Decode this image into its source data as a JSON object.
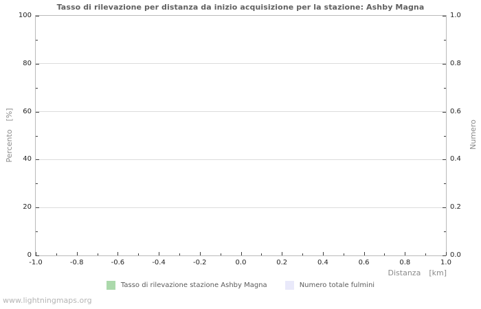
{
  "watermark": "www.lightningmaps.org",
  "colors": {
    "background": "#ffffff",
    "title": "#606060",
    "tick_label": "#222222",
    "axis_label": "#8a8a8a",
    "grid": "#dcdcdc",
    "border": "#b9b9b9",
    "tick": "#3a3a3a",
    "legend_text": "#5a5a5a",
    "watermark": "#b4b4b4"
  },
  "chart_data": {
    "type": "bar",
    "title": "Tasso di rilevazione per distanza da inizio acquisizione per la stazione: Ashby Magna",
    "grid": true,
    "legend_position": "bottom",
    "x_axis": {
      "label": "Distanza",
      "unit": "[km]",
      "min": -1.0,
      "max": 1.0,
      "major_ticks": [
        -1.0,
        -0.8,
        -0.6,
        -0.4,
        -0.2,
        0.0,
        0.2,
        0.4,
        0.6,
        0.8,
        1.0
      ],
      "major_labels": [
        "-1.0",
        "-0.8",
        "-0.6",
        "-0.4",
        "-0.2",
        "0.0",
        "0.2",
        "0.4",
        "0.6",
        "0.8",
        "1.0"
      ],
      "minor_ticks": [
        -0.9,
        -0.7,
        -0.5,
        -0.3,
        -0.1,
        0.1,
        0.3,
        0.5,
        0.7,
        0.9
      ]
    },
    "y_axis_left": {
      "label": "Percento",
      "unit": "[%]",
      "min": 0,
      "max": 100,
      "major_ticks": [
        0,
        20,
        40,
        60,
        80,
        100
      ],
      "major_labels": [
        "0",
        "20",
        "40",
        "60",
        "80",
        "100"
      ],
      "minor_ticks": [
        10,
        30,
        50,
        70,
        90
      ]
    },
    "y_axis_right": {
      "label": "Numero",
      "min": 0.0,
      "max": 1.0,
      "major_ticks": [
        0.0,
        0.2,
        0.4,
        0.6,
        0.8,
        1.0
      ],
      "major_labels": [
        "0.0",
        "0.2",
        "0.4",
        "0.6",
        "0.8",
        "1.0"
      ],
      "minor_ticks": [
        0.1,
        0.3,
        0.5,
        0.7,
        0.9
      ]
    },
    "series": [
      {
        "name": "Tasso di rilevazione stazione Ashby Magna",
        "color": "#abd9ab",
        "axis": "left",
        "values": []
      },
      {
        "name": "Numero totale fulmini",
        "color": "#e9e9fa",
        "axis": "right",
        "values": []
      }
    ]
  }
}
